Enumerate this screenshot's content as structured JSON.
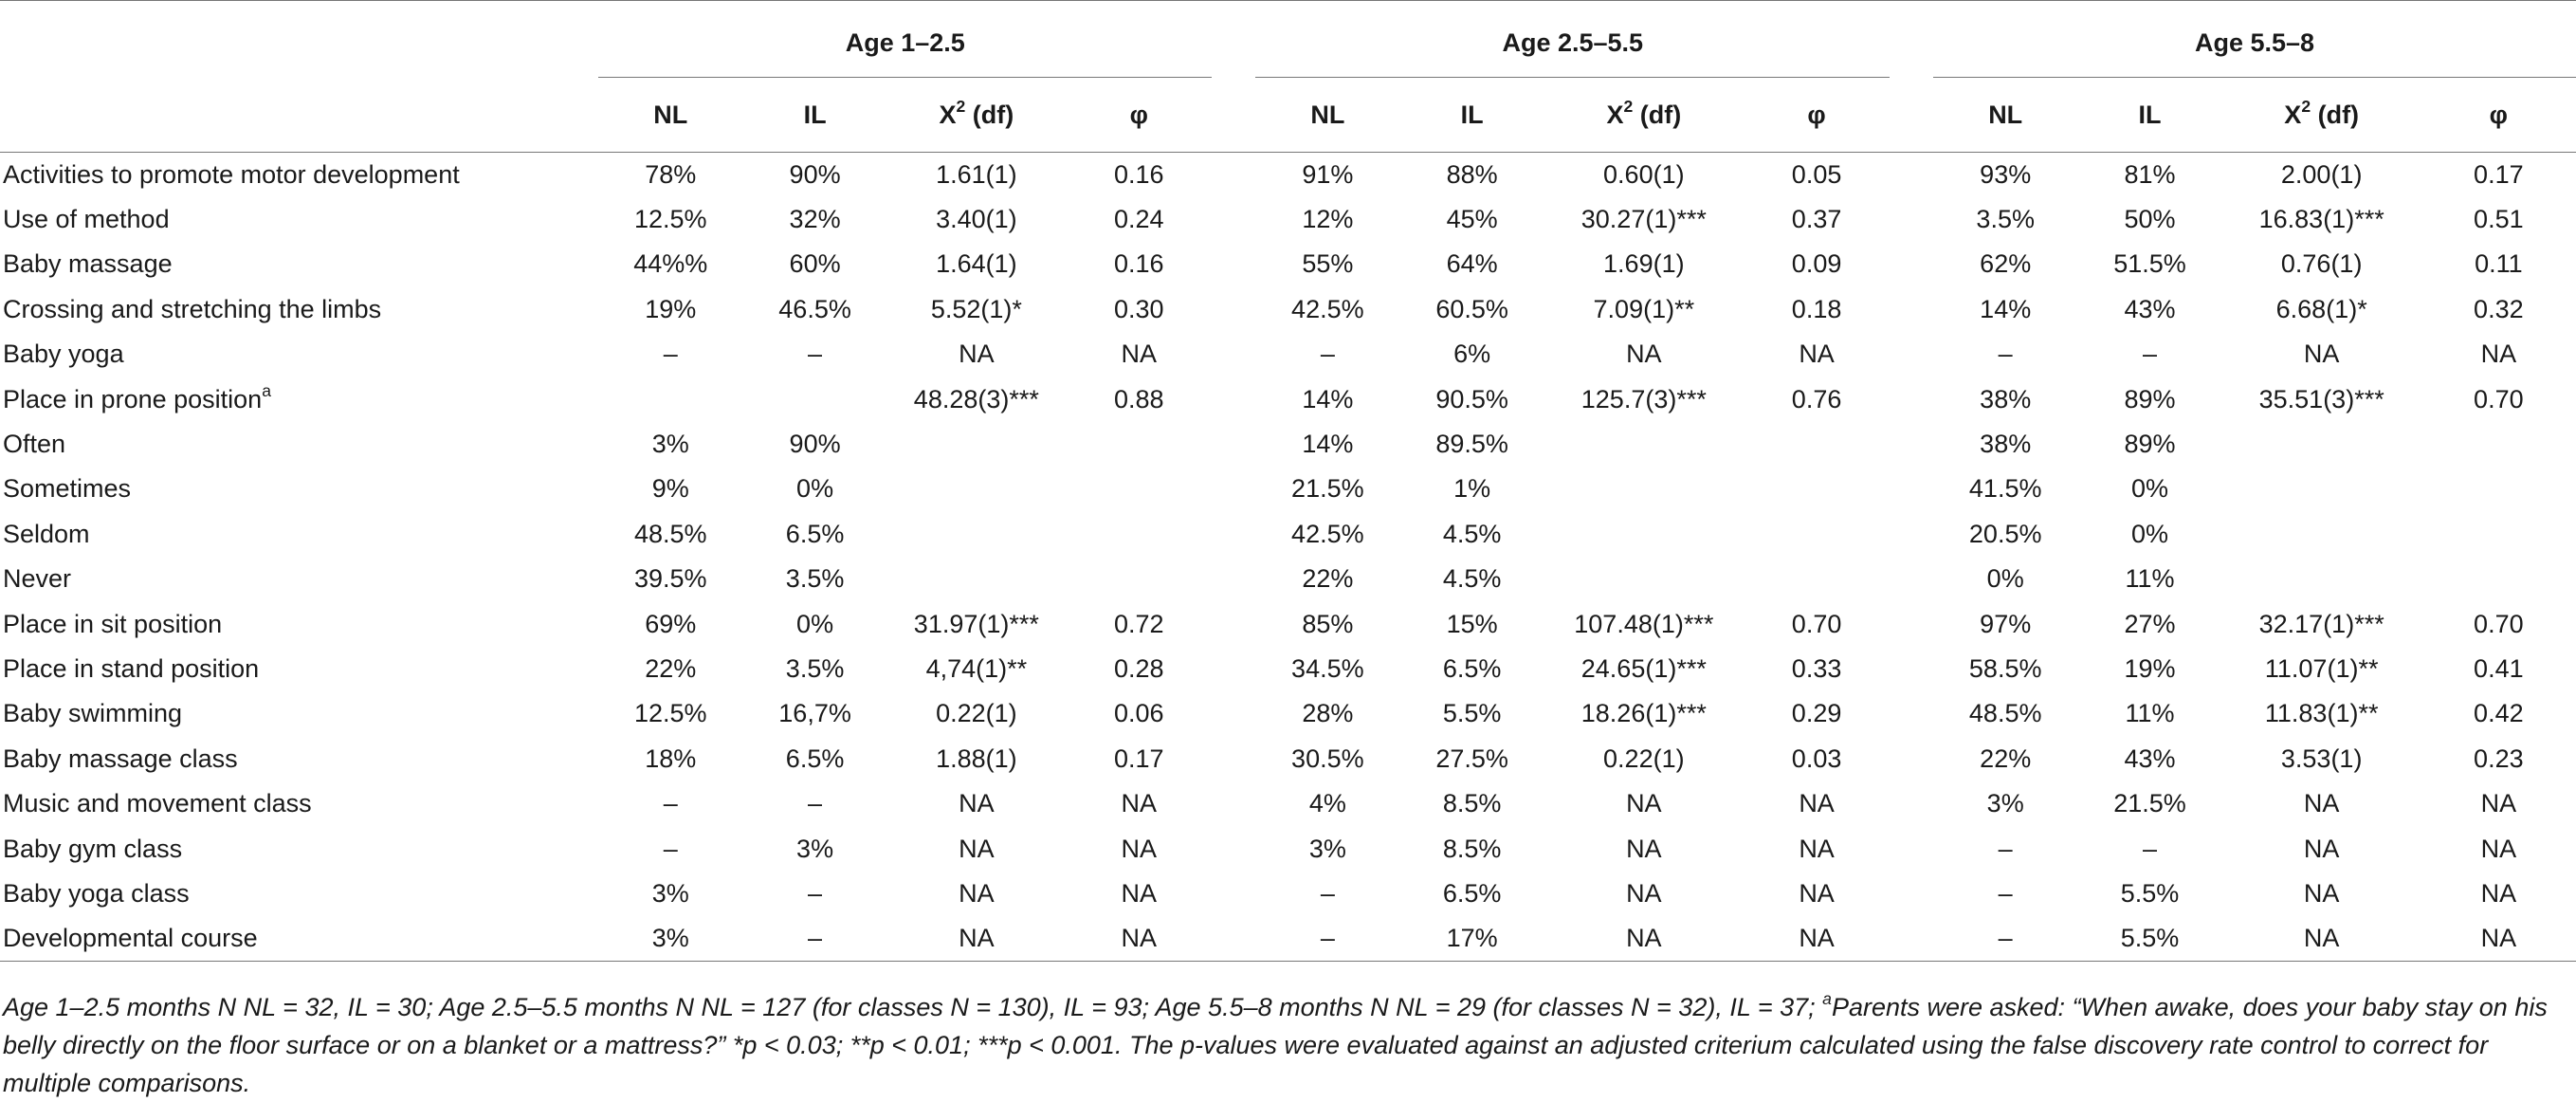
{
  "groups": [
    "Age 1–2.5",
    "Age 2.5–5.5",
    "Age 5.5–8"
  ],
  "columns": {
    "nl": "NL",
    "il": "IL",
    "x2": "X",
    "x2_sup": "2",
    "x2_df": " (df)",
    "phi": "φ"
  },
  "rows": [
    {
      "label": "Activities to promote motor development",
      "cells": [
        "78%",
        "90%",
        "1.61(1)",
        "0.16",
        "91%",
        "88%",
        "0.60(1)",
        "0.05",
        "93%",
        "81%",
        "2.00(1)",
        "0.17"
      ]
    },
    {
      "label": "Use of method",
      "cells": [
        "12.5%",
        "32%",
        "3.40(1)",
        "0.24",
        "12%",
        "45%",
        "30.27(1)***",
        "0.37",
        "3.5%",
        "50%",
        "16.83(1)***",
        "0.51"
      ]
    },
    {
      "label": "Baby massage",
      "cells": [
        "44%%",
        "60%",
        "1.64(1)",
        "0.16",
        "55%",
        "64%",
        "1.69(1)",
        "0.09",
        "62%",
        "51.5%",
        "0.76(1)",
        "0.11"
      ]
    },
    {
      "label": "Crossing and stretching the limbs",
      "cells": [
        "19%",
        "46.5%",
        "5.52(1)*",
        "0.30",
        "42.5%",
        "60.5%",
        "7.09(1)**",
        "0.18",
        "14%",
        "43%",
        "6.68(1)*",
        "0.32"
      ]
    },
    {
      "label": "Baby yoga",
      "cells": [
        "–",
        "–",
        "NA",
        "NA",
        "–",
        "6%",
        "NA",
        "NA",
        "–",
        "–",
        "NA",
        "NA"
      ]
    },
    {
      "label": "Place in prone position",
      "label_sup": "a",
      "cells": [
        "",
        "",
        "48.28(3)***",
        "0.88",
        "14%",
        "90.5%",
        "125.7(3)***",
        "0.76",
        "38%",
        "89%",
        "35.51(3)***",
        "0.70"
      ]
    },
    {
      "label": "Often",
      "cells": [
        "3%",
        "90%",
        "",
        "",
        "14%",
        "89.5%",
        "",
        "",
        "38%",
        "89%",
        "",
        ""
      ]
    },
    {
      "label": "Sometimes",
      "cells": [
        "9%",
        "0%",
        "",
        "",
        "21.5%",
        "1%",
        "",
        "",
        "41.5%",
        "0%",
        "",
        ""
      ]
    },
    {
      "label": "Seldom",
      "cells": [
        "48.5%",
        "6.5%",
        "",
        "",
        "42.5%",
        "4.5%",
        "",
        "",
        "20.5%",
        "0%",
        "",
        ""
      ]
    },
    {
      "label": "Never",
      "cells": [
        "39.5%",
        "3.5%",
        "",
        "",
        "22%",
        "4.5%",
        "",
        "",
        "0%",
        "11%",
        "",
        ""
      ]
    },
    {
      "label": "Place in sit position",
      "cells": [
        "69%",
        "0%",
        "31.97(1)***",
        "0.72",
        "85%",
        "15%",
        "107.48(1)***",
        "0.70",
        "97%",
        "27%",
        "32.17(1)***",
        "0.70"
      ]
    },
    {
      "label": "Place in stand position",
      "cells": [
        "22%",
        "3.5%",
        "4,74(1)**",
        "0.28",
        "34.5%",
        "6.5%",
        "24.65(1)***",
        "0.33",
        "58.5%",
        "19%",
        "11.07(1)**",
        "0.41"
      ]
    },
    {
      "label": "Baby swimming",
      "cells": [
        "12.5%",
        "16,7%",
        "0.22(1)",
        "0.06",
        "28%",
        "5.5%",
        "18.26(1)***",
        "0.29",
        "48.5%",
        "11%",
        "11.83(1)**",
        "0.42"
      ]
    },
    {
      "label": "Baby massage class",
      "cells": [
        "18%",
        "6.5%",
        "1.88(1)",
        "0.17",
        "30.5%",
        "27.5%",
        "0.22(1)",
        "0.03",
        "22%",
        "43%",
        "3.53(1)",
        "0.23"
      ]
    },
    {
      "label": "Music and movement class",
      "cells": [
        "–",
        "–",
        "NA",
        "NA",
        "4%",
        "8.5%",
        "NA",
        "NA",
        "3%",
        "21.5%",
        "NA",
        "NA"
      ]
    },
    {
      "label": "Baby gym class",
      "cells": [
        "–",
        "3%",
        "NA",
        "NA",
        "3%",
        "8.5%",
        "NA",
        "NA",
        "–",
        "–",
        "NA",
        "NA"
      ]
    },
    {
      "label": "Baby yoga class",
      "cells": [
        "3%",
        "–",
        "NA",
        "NA",
        "–",
        "6.5%",
        "NA",
        "NA",
        "–",
        "5.5%",
        "NA",
        "NA"
      ]
    },
    {
      "label": "Developmental course",
      "cells": [
        "3%",
        "–",
        "NA",
        "NA",
        "–",
        "17%",
        "NA",
        "NA",
        "–",
        "5.5%",
        "NA",
        "NA"
      ]
    }
  ],
  "footnote": {
    "part1": "Age 1–2.5 months N NL = 32, IL = 30; Age 2.5–5.5 months N NL = 127 (for classes N = 130), IL = 93; Age 5.5–8 months N NL = 29 (for classes N = 32), IL = 37; ",
    "sup": "a",
    "part2": "Parents were asked: “When awake, does your baby stay on his belly directly on the floor surface or on a blanket or a mattress?” *p < 0.03; **p < 0.01; ***p < 0.001. The p-values were evaluated against an adjusted criterium calculated using the false discovery rate control to correct for multiple comparisons."
  }
}
